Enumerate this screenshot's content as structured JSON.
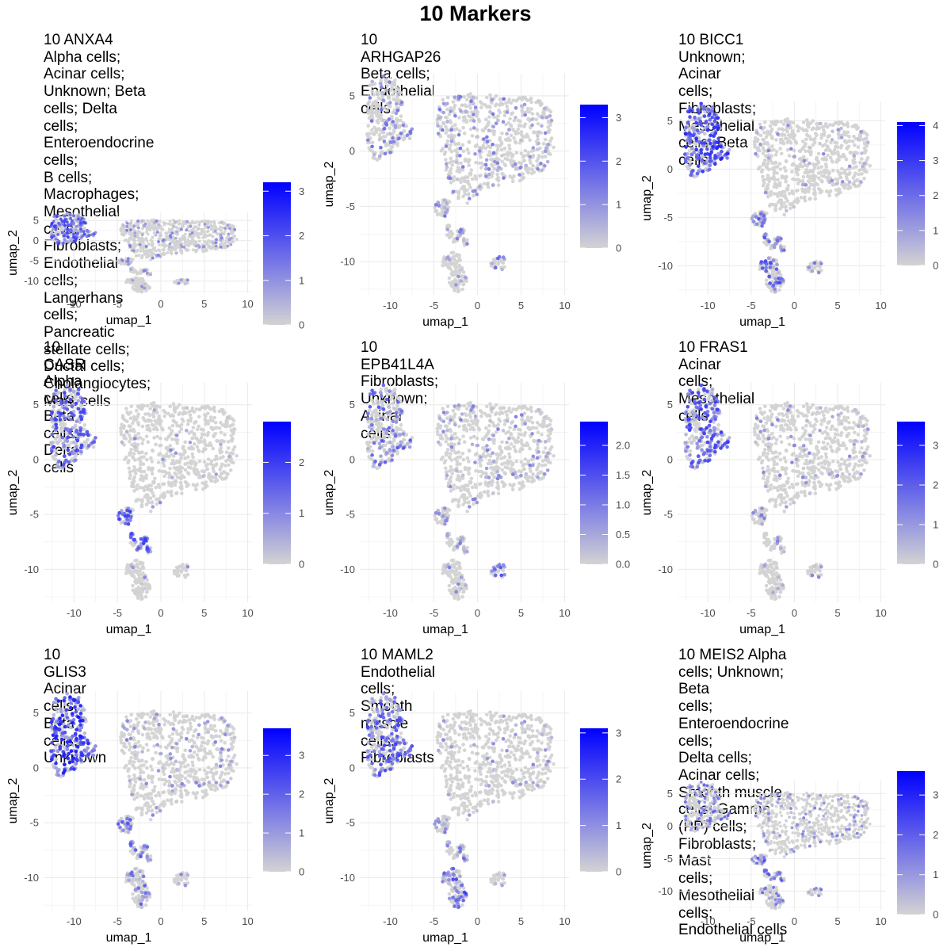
{
  "title": "10 Markers",
  "colors": {
    "low": "#d3d3d3",
    "high": "#0000ff",
    "grid": "#ebebeb"
  },
  "chart_data": [
    {
      "type": "scatter",
      "title": "10 ANXA4 Alpha cells; Acinar cells;\nUnknown; Beta cells; Delta\ncells; Enteroendocrine cells;\nB cells; Macrophages;\nMesothelial cells;\nFibroblasts; Endothelial\ncells; Langerhans cells;\nPancreatic stellate cells;\nDuctal cells; Cholangiocytes;\nMast cells",
      "xlabel": "umap_1",
      "ylabel": "umap_2",
      "xticks": [
        -10,
        -5,
        0,
        5,
        10
      ],
      "yticks": [
        5,
        0,
        -5,
        -10
      ],
      "xlim": [
        -13.5,
        10.5
      ],
      "ylim": [
        -13,
        7
      ],
      "color_ticks": [
        0,
        1,
        2,
        3
      ],
      "color_max": 3.2,
      "expr": {
        "a": 0.6,
        "b": 0.12,
        "c": 0.12,
        "d": 0.05,
        "e": 0.15
      }
    },
    {
      "type": "scatter",
      "title": "10 ARHGAP26 Beta cells; Endothelial cells",
      "xlabel": "umap_1",
      "ylabel": "umap_2",
      "xticks": [
        -10,
        -5,
        0,
        5,
        10
      ],
      "yticks": [
        5,
        0,
        -5,
        -10
      ],
      "xlim": [
        -13.5,
        10.5
      ],
      "ylim": [
        -13,
        7
      ],
      "color_ticks": [
        0,
        1,
        2,
        3
      ],
      "color_max": 3.3,
      "expr": {
        "a": 0.25,
        "b": 0.18,
        "c": 0.18,
        "d": 0.1,
        "e": 0.3
      }
    },
    {
      "type": "scatter",
      "title": "10 BICC1 Unknown; Acinar cells;\nFibroblasts; Mesothelial\ncells; Beta cells",
      "xlabel": "umap_1",
      "ylabel": "umap_2",
      "xticks": [
        -10,
        -5,
        0,
        5,
        10
      ],
      "yticks": [
        5,
        0,
        -5,
        -10
      ],
      "xlim": [
        -13.5,
        10.5
      ],
      "ylim": [
        -13,
        7
      ],
      "color_ticks": [
        0,
        1,
        2,
        3,
        4
      ],
      "color_max": 4.1,
      "expr": {
        "a": 0.75,
        "b": 0.06,
        "c": 0.4,
        "d": 0.5,
        "e": 0.2
      }
    },
    {
      "type": "scatter",
      "title": "10 CASR Alpha cells; Beta cells;\nDelta cells",
      "xlabel": "umap_1",
      "ylabel": "umap_2",
      "xticks": [
        -10,
        -5,
        0,
        5,
        10
      ],
      "yticks": [
        5,
        0,
        -5,
        -10
      ],
      "xlim": [
        -13.5,
        10.5
      ],
      "ylim": [
        -13,
        7
      ],
      "color_ticks": [
        0,
        1,
        2
      ],
      "color_max": 2.8,
      "expr": {
        "a": 0.6,
        "b": 0.03,
        "c": 0.6,
        "d": 0.05,
        "e": 0.05
      }
    },
    {
      "type": "scatter",
      "title": "10 EPB41L4A Fibroblasts; Unknown; Acinar\ncells",
      "xlabel": "umap_1",
      "ylabel": "umap_2",
      "xticks": [
        -10,
        -5,
        0,
        5,
        10
      ],
      "yticks": [
        5,
        0,
        -5,
        -10
      ],
      "xlim": [
        -13.5,
        10.5
      ],
      "ylim": [
        -13,
        7
      ],
      "color_ticks": [
        "0.0",
        "0.5",
        "1.0",
        "1.5",
        "2.0"
      ],
      "color_max": 2.4,
      "expr": {
        "a": 0.4,
        "b": 0.12,
        "c": 0.2,
        "d": 0.1,
        "e": 0.5
      }
    },
    {
      "type": "scatter",
      "title": "10 FRAS1 Acinar cells; Mesothelial\ncells",
      "xlabel": "umap_1",
      "ylabel": "umap_2",
      "xticks": [
        -10,
        -5,
        0,
        5,
        10
      ],
      "yticks": [
        5,
        0,
        -5,
        -10
      ],
      "xlim": [
        -13.5,
        10.5
      ],
      "ylim": [
        -13,
        7
      ],
      "color_ticks": [
        0,
        1,
        2,
        3
      ],
      "color_max": 3.6,
      "expr": {
        "a": 0.6,
        "b": 0.08,
        "c": 0.15,
        "d": 0.1,
        "e": 0.15
      }
    },
    {
      "type": "scatter",
      "title": "10 GLIS3 Acinar cells; Beta cells;\nUnknown",
      "xlabel": "umap_1",
      "ylabel": "umap_2",
      "xticks": [
        -10,
        -5,
        0,
        5,
        10
      ],
      "yticks": [
        5,
        0,
        -5,
        -10
      ],
      "xlim": [
        -13.5,
        10.5
      ],
      "ylim": [
        -13,
        7
      ],
      "color_ticks": [
        0,
        1,
        2,
        3
      ],
      "color_max": 3.7,
      "expr": {
        "a": 0.85,
        "b": 0.1,
        "c": 0.4,
        "d": 0.35,
        "e": 0.15
      }
    },
    {
      "type": "scatter",
      "title": "10 MAML2 Endothelial cells; Smooth\nmuscle cells; Fibroblasts",
      "xlabel": "umap_1",
      "ylabel": "umap_2",
      "xticks": [
        -10,
        -5,
        0,
        5,
        10
      ],
      "yticks": [
        5,
        0,
        -5,
        -10
      ],
      "xlim": [
        -13.5,
        10.5
      ],
      "ylim": [
        -13,
        7
      ],
      "color_ticks": [
        0,
        1,
        2,
        3
      ],
      "color_max": 3.1,
      "expr": {
        "a": 0.55,
        "b": 0.06,
        "c": 0.25,
        "d": 0.6,
        "e": 0.15
      }
    },
    {
      "type": "scatter",
      "title": "10 MEIS2 Alpha cells; Unknown; Beta\ncells; Enteroendocrine cells;\nDelta cells; Acinar cells;\nSmooth muscle cells; Gamma\n(PP) cells; Fibroblasts; Mast\ncells; Mesothelial cells;\nEndothelial cells",
      "xlabel": "umap_1",
      "ylabel": "umap_2",
      "xticks": [
        -10,
        -5,
        0,
        5,
        10
      ],
      "yticks": [
        5,
        0,
        -5,
        -10
      ],
      "xlim": [
        -13.5,
        10.5
      ],
      "ylim": [
        -13,
        7
      ],
      "color_ticks": [
        0,
        1,
        2,
        3
      ],
      "color_max": 3.6,
      "expr": {
        "a": 0.35,
        "b": 0.15,
        "c": 0.45,
        "d": 0.3,
        "e": 0.3
      }
    }
  ]
}
